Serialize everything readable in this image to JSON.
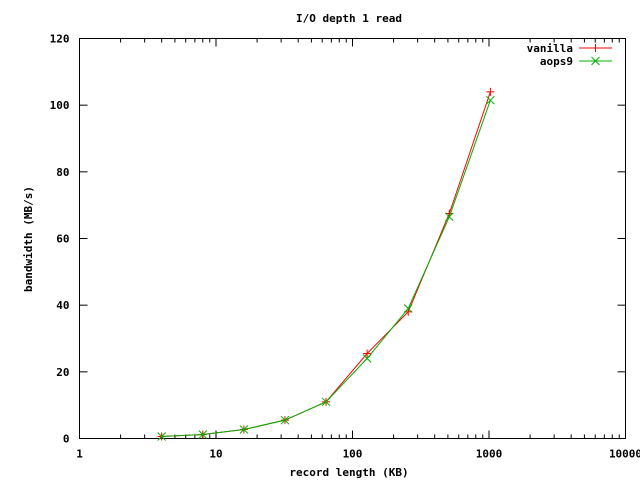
{
  "chart_data": {
    "type": "line",
    "title": "I/O depth 1 read",
    "xlabel": "record length (KB)",
    "ylabel": "bandwidth (MB/s)",
    "xscale": "log",
    "xlim": [
      1,
      10000
    ],
    "ylim": [
      0,
      120
    ],
    "x_ticks": [
      1,
      10,
      100,
      1000,
      10000
    ],
    "x_tick_labels": [
      "1",
      "10",
      "100",
      "1000",
      "10000"
    ],
    "y_ticks": [
      0,
      20,
      40,
      60,
      80,
      100,
      120
    ],
    "y_tick_labels": [
      "0",
      "20",
      "40",
      "60",
      "80",
      "100",
      "120"
    ],
    "grid": false,
    "legend_position": "top-right",
    "x": [
      4,
      8,
      16,
      32,
      64,
      128,
      256,
      512,
      1024
    ],
    "series": [
      {
        "name": "vanilla",
        "color": "#ff0000",
        "marker": "plus",
        "values": [
          0.6,
          1.2,
          2.7,
          5.5,
          11.0,
          25.5,
          38.0,
          67.5,
          104.0
        ]
      },
      {
        "name": "aops9",
        "color": "#00b000",
        "marker": "cross",
        "values": [
          0.6,
          1.2,
          2.7,
          5.5,
          11.0,
          24.0,
          39.0,
          66.5,
          101.5
        ]
      }
    ]
  }
}
